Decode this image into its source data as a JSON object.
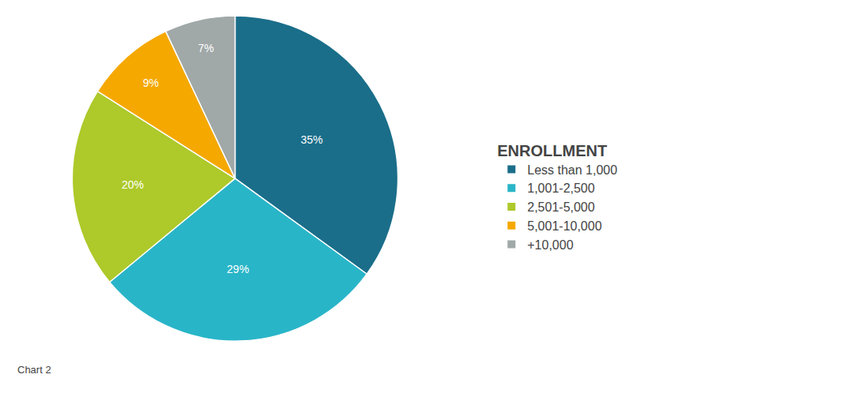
{
  "chart_data": {
    "type": "pie",
    "title": "ENROLLMENT",
    "annotations": [
      "Chart 2"
    ],
    "categories": [
      "Less than 1,000",
      "1,001-2,500",
      "2,501-5,000",
      "5,001-10,000",
      "+10,000"
    ],
    "values": [
      35,
      29,
      20,
      9,
      7
    ],
    "value_labels": [
      "35%",
      "29%",
      "20%",
      "9%",
      "7%"
    ],
    "colors": [
      "#1a6e8a",
      "#29b5c8",
      "#adc92a",
      "#f5a800",
      "#a0a8a8"
    ],
    "data_labels": true,
    "legend": "right"
  }
}
